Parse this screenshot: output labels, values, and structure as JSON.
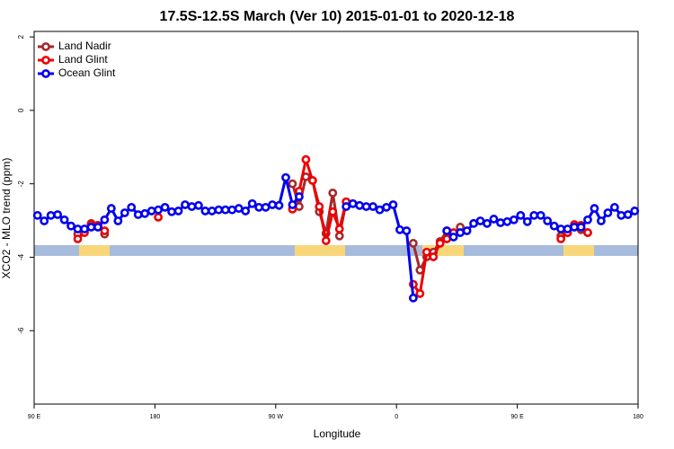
{
  "chart_data": {
    "type": "line",
    "title": "17.5S-12.5S March (Ver 10)   2015-01-01 to 2020-12-18",
    "x_label": "Longitude",
    "y_label": "XCO2 - MLO trend (ppm)",
    "xlim": [
      90,
      540
    ],
    "ylim": [
      -8,
      2.15
    ],
    "xticks": [
      {
        "value": 90,
        "label": "90 E"
      },
      180,
      {
        "value": 270,
        "label": "90 W"
      },
      {
        "value": 360,
        "label": "0"
      },
      {
        "value": 450,
        "label": "90 E"
      },
      {
        "value": 540,
        "label": "180"
      }
    ],
    "yticks": [
      2,
      0,
      -2,
      -4,
      -6
    ],
    "legend": "top-left",
    "x": [
      92.5,
      97.5,
      102.5,
      107.5,
      112.5,
      117.5,
      122.5,
      127.5,
      132.5,
      137.5,
      142.5,
      147.5,
      152.5,
      157.5,
      162.5,
      167.5,
      172.5,
      177.5,
      182.5,
      187.5,
      192.5,
      197.5,
      202.5,
      207.5,
      212.5,
      217.5,
      222.5,
      227.5,
      232.5,
      237.5,
      242.5,
      247.5,
      252.5,
      257.5,
      262.5,
      267.5,
      272.5,
      277.5,
      282.5,
      287.5,
      292.5,
      297.5,
      302.5,
      307.5,
      312.5,
      317.5,
      322.5,
      327.5,
      332.5,
      337.5,
      342.5,
      347.5,
      352.5,
      357.5,
      362.5,
      367.5,
      372.5,
      377.5,
      382.5,
      387.5,
      392.5,
      397.5,
      402.5,
      407.5,
      412.5,
      417.5,
      422.5,
      427.5,
      432.5,
      437.5,
      442.5,
      447.5,
      452.5,
      457.5,
      462.5,
      467.5,
      472.5,
      477.5,
      482.5,
      487.5,
      492.5,
      497.5,
      502.5,
      507.5,
      512.5,
      517.5,
      522.5,
      527.5,
      532.5,
      537.5
    ],
    "series": [
      {
        "name": "Land Nadir",
        "color": "#a52a2a",
        "values": [
          null,
          null,
          null,
          null,
          null,
          null,
          -3.37,
          -3.3,
          -3.08,
          -3.13,
          -3.37,
          null,
          null,
          null,
          null,
          null,
          null,
          null,
          null,
          null,
          null,
          null,
          null,
          null,
          null,
          null,
          null,
          null,
          null,
          null,
          null,
          null,
          null,
          null,
          null,
          null,
          null,
          null,
          -2.0,
          -2.62,
          -1.81,
          -1.91,
          -2.76,
          -3.35,
          -2.25,
          -3.42,
          -2.49,
          null,
          null,
          null,
          null,
          null,
          null,
          null,
          null,
          null,
          -3.62,
          -4.35,
          -3.99,
          -3.86,
          -3.57,
          -3.28,
          -3.37,
          -3.18,
          null,
          null,
          null,
          null,
          null,
          null,
          null,
          null,
          null,
          null,
          null,
          null,
          null,
          null,
          -3.42,
          -3.33,
          -3.13,
          -3.25,
          -3.33,
          null,
          null,
          null,
          null,
          null,
          null,
          null
        ]
      },
      {
        "name": "Land Glint",
        "color": "#ee0000",
        "values": [
          null,
          null,
          null,
          null,
          null,
          null,
          -3.5,
          -3.33,
          -3.11,
          -3.13,
          -3.28,
          null,
          null,
          null,
          null,
          null,
          null,
          null,
          -2.91,
          null,
          null,
          null,
          null,
          null,
          null,
          null,
          null,
          null,
          null,
          null,
          null,
          null,
          null,
          null,
          null,
          null,
          null,
          null,
          -2.69,
          -2.2,
          -1.34,
          -1.91,
          -2.62,
          -3.55,
          -2.76,
          -3.23,
          -2.49,
          null,
          null,
          null,
          null,
          null,
          null,
          null,
          null,
          null,
          -4.74,
          -4.99,
          -3.86,
          -3.99,
          -3.62,
          -3.5,
          -3.33,
          null,
          null,
          null,
          null,
          null,
          null,
          null,
          null,
          null,
          null,
          null,
          null,
          null,
          null,
          null,
          -3.5,
          -3.33,
          -3.11,
          -3.13,
          -3.33,
          null,
          null,
          null,
          null,
          null,
          null,
          null
        ]
      },
      {
        "name": "Ocean Glint",
        "color": "#0000ee",
        "values": [
          -2.86,
          -3.01,
          -2.86,
          -2.84,
          -2.98,
          -3.15,
          -3.23,
          -3.23,
          -3.18,
          -3.18,
          -2.98,
          -2.67,
          -3.01,
          -2.79,
          -2.64,
          -2.84,
          -2.81,
          -2.74,
          -2.71,
          -2.64,
          -2.76,
          -2.74,
          -2.57,
          -2.62,
          -2.59,
          -2.74,
          -2.74,
          -2.71,
          -2.71,
          -2.71,
          -2.67,
          -2.74,
          -2.54,
          -2.64,
          -2.64,
          -2.57,
          -2.59,
          -1.83,
          -2.57,
          -2.35,
          null,
          null,
          null,
          null,
          null,
          null,
          -2.62,
          -2.54,
          -2.59,
          -2.62,
          -2.62,
          -2.71,
          -2.64,
          -2.57,
          -3.25,
          -3.28,
          -5.11,
          null,
          null,
          null,
          null,
          -3.28,
          -3.45,
          -3.33,
          -3.28,
          -3.08,
          -3.01,
          -3.08,
          -2.96,
          -3.06,
          -3.03,
          -2.98,
          -2.86,
          -3.03,
          -2.86,
          -2.86,
          -3.01,
          -3.15,
          -3.23,
          -3.23,
          -3.18,
          -3.18,
          -2.98,
          -2.67,
          -3.01,
          -2.79,
          -2.64,
          -2.86,
          -2.84,
          -2.74
        ]
      }
    ]
  }
}
